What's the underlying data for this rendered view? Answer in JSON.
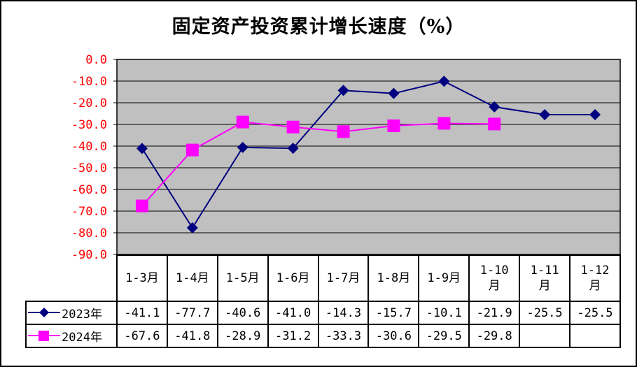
{
  "chart_data": {
    "type": "line",
    "title": "固定资产投资累计增长速度（%）",
    "categories": [
      "1-3月",
      "1-4月",
      "1-5月",
      "1-6月",
      "1-7月",
      "1-8月",
      "1-9月",
      "1-10月",
      "1-11月",
      "1-12月"
    ],
    "series": [
      {
        "name": "2023年",
        "color": "#000080",
        "marker": "diamond",
        "values": [
          -41.1,
          -77.7,
          -40.6,
          -41.0,
          -14.3,
          -15.7,
          -10.1,
          -21.9,
          -25.5,
          -25.5
        ]
      },
      {
        "name": "2024年",
        "color": "#FF00FF",
        "marker": "square",
        "values": [
          -67.6,
          -41.8,
          -28.9,
          -31.2,
          -33.3,
          -30.6,
          -29.5,
          -29.8,
          null,
          null
        ]
      }
    ],
    "ylim": [
      -90,
      0
    ],
    "yticks": [
      "0.0",
      "-10.0",
      "-20.0",
      "-30.0",
      "-40.0",
      "-50.0",
      "-60.0",
      "-70.0",
      "-80.0",
      "-90.0"
    ],
    "ytick_color": "#FF0000",
    "plot_background": "#C0C0C0",
    "grid": true,
    "legend": "data-table"
  }
}
